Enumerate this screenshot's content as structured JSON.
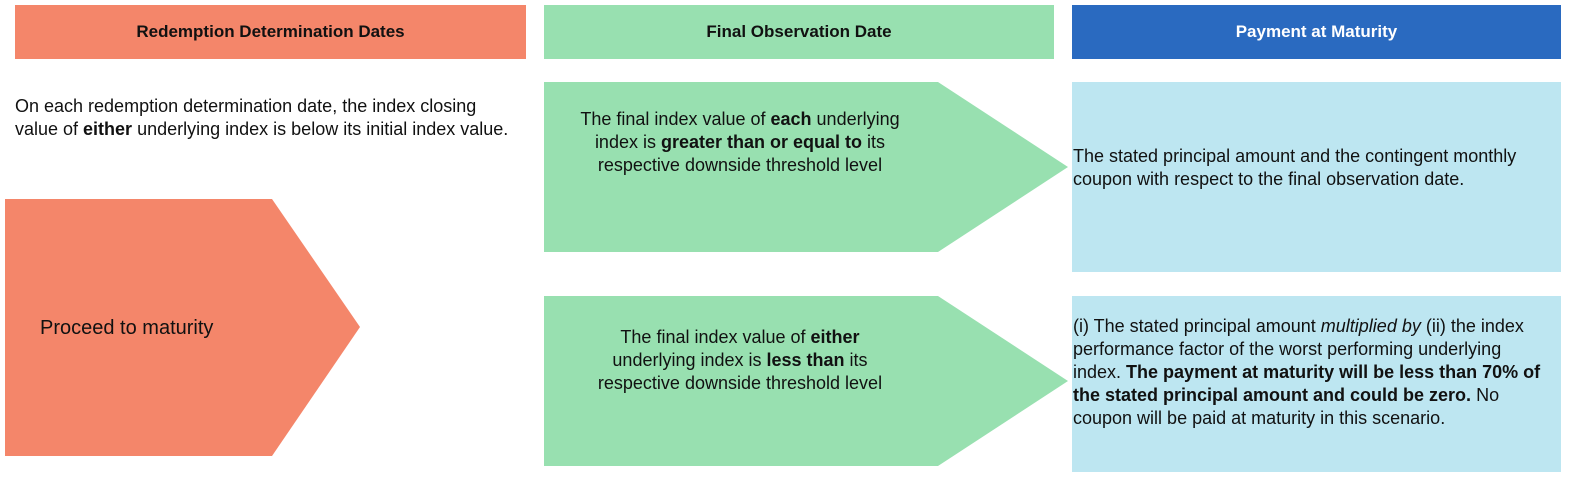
{
  "colors": {
    "orange": "#F4866A",
    "green": "#98E0B0",
    "blue_header": "#2A6AC0",
    "light_blue": "#BDE6F1"
  },
  "headers": {
    "redemption": "Redemption Determination Dates",
    "final_observation": "Final Observation Date",
    "payment": "Payment at Maturity"
  },
  "redemption": {
    "condition": [
      "On each redemption determination date, the index closing value of ",
      "either",
      " underlying index is below its initial index value."
    ],
    "action": "Proceed to maturity"
  },
  "final_observation": {
    "scenario_1": [
      "The final index value of ",
      "each",
      " underlying index is ",
      "greater than or equal to",
      " its respective downside threshold level"
    ],
    "scenario_2": [
      "The final index value of ",
      "either",
      " underlying index is ",
      "less than",
      " its respective downside threshold level"
    ]
  },
  "payment": {
    "scenario_1": "The stated principal amount and the contingent monthly coupon with respect to the final observation date.",
    "scenario_2": [
      "(i) The stated principal amount ",
      "multiplied by",
      " (ii) the index performance factor of the worst performing underlying index.  ",
      "The payment at maturity will be less than 70% of the stated principal amount and could be zero.",
      " No coupon will be paid at maturity in this scenario."
    ]
  }
}
